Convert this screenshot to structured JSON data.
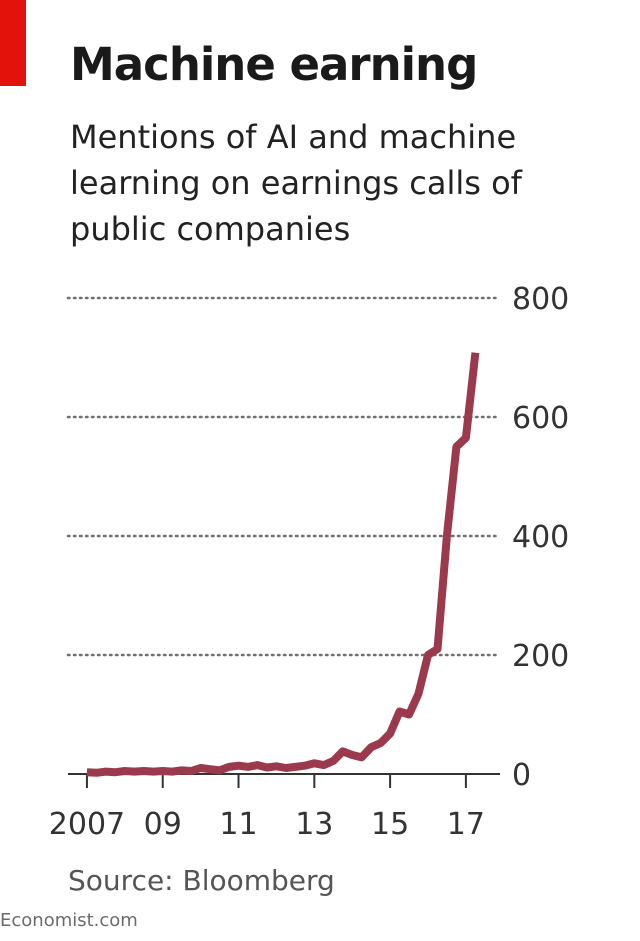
{
  "colors": {
    "accent_tab": "#e3120b",
    "line": "#9b3a4d",
    "grid": "#6f6f6f",
    "axis": "#333333"
  },
  "header": {
    "title": "Machine earning",
    "subtitle": "Mentions of AI and machine learning on earnings calls of public companies"
  },
  "footer": {
    "source": "Source: Bloomberg",
    "brand": "Economist.com"
  },
  "chart_data": {
    "type": "line",
    "title": "Machine earning",
    "subtitle": "Mentions of AI and machine learning on earnings calls of public companies",
    "xlabel": "",
    "ylabel": "",
    "ylim": [
      0,
      800
    ],
    "xlim": [
      2006.5,
      2017.9
    ],
    "yticks": [
      0,
      200,
      400,
      600,
      800
    ],
    "xticks": [
      {
        "value": 2007,
        "label": "2007"
      },
      {
        "value": 2009,
        "label": "09"
      },
      {
        "value": 2011,
        "label": "11"
      },
      {
        "value": 2013,
        "label": "13"
      },
      {
        "value": 2015,
        "label": "15"
      },
      {
        "value": 2017,
        "label": "17"
      }
    ],
    "grid": "dotted horizontal",
    "y_axis_position": "right",
    "series": [
      {
        "name": "Mentions of AI and machine learning",
        "x": [
          2007.0,
          2007.25,
          2007.5,
          2007.75,
          2008.0,
          2008.25,
          2008.5,
          2008.75,
          2009.0,
          2009.25,
          2009.5,
          2009.75,
          2010.0,
          2010.25,
          2010.5,
          2010.75,
          2011.0,
          2011.25,
          2011.5,
          2011.75,
          2012.0,
          2012.25,
          2012.5,
          2012.75,
          2013.0,
          2013.25,
          2013.5,
          2013.75,
          2014.0,
          2014.25,
          2014.5,
          2014.75,
          2015.0,
          2015.25,
          2015.5,
          2015.75,
          2016.0,
          2016.25,
          2016.5,
          2016.75,
          2017.0,
          2017.25
        ],
        "values": [
          3,
          2,
          4,
          3,
          5,
          4,
          5,
          4,
          5,
          4,
          6,
          5,
          10,
          8,
          6,
          12,
          14,
          12,
          15,
          11,
          13,
          10,
          12,
          14,
          18,
          15,
          22,
          38,
          32,
          28,
          45,
          52,
          68,
          105,
          100,
          135,
          200,
          210,
          400,
          550,
          565,
          708
        ]
      }
    ]
  }
}
